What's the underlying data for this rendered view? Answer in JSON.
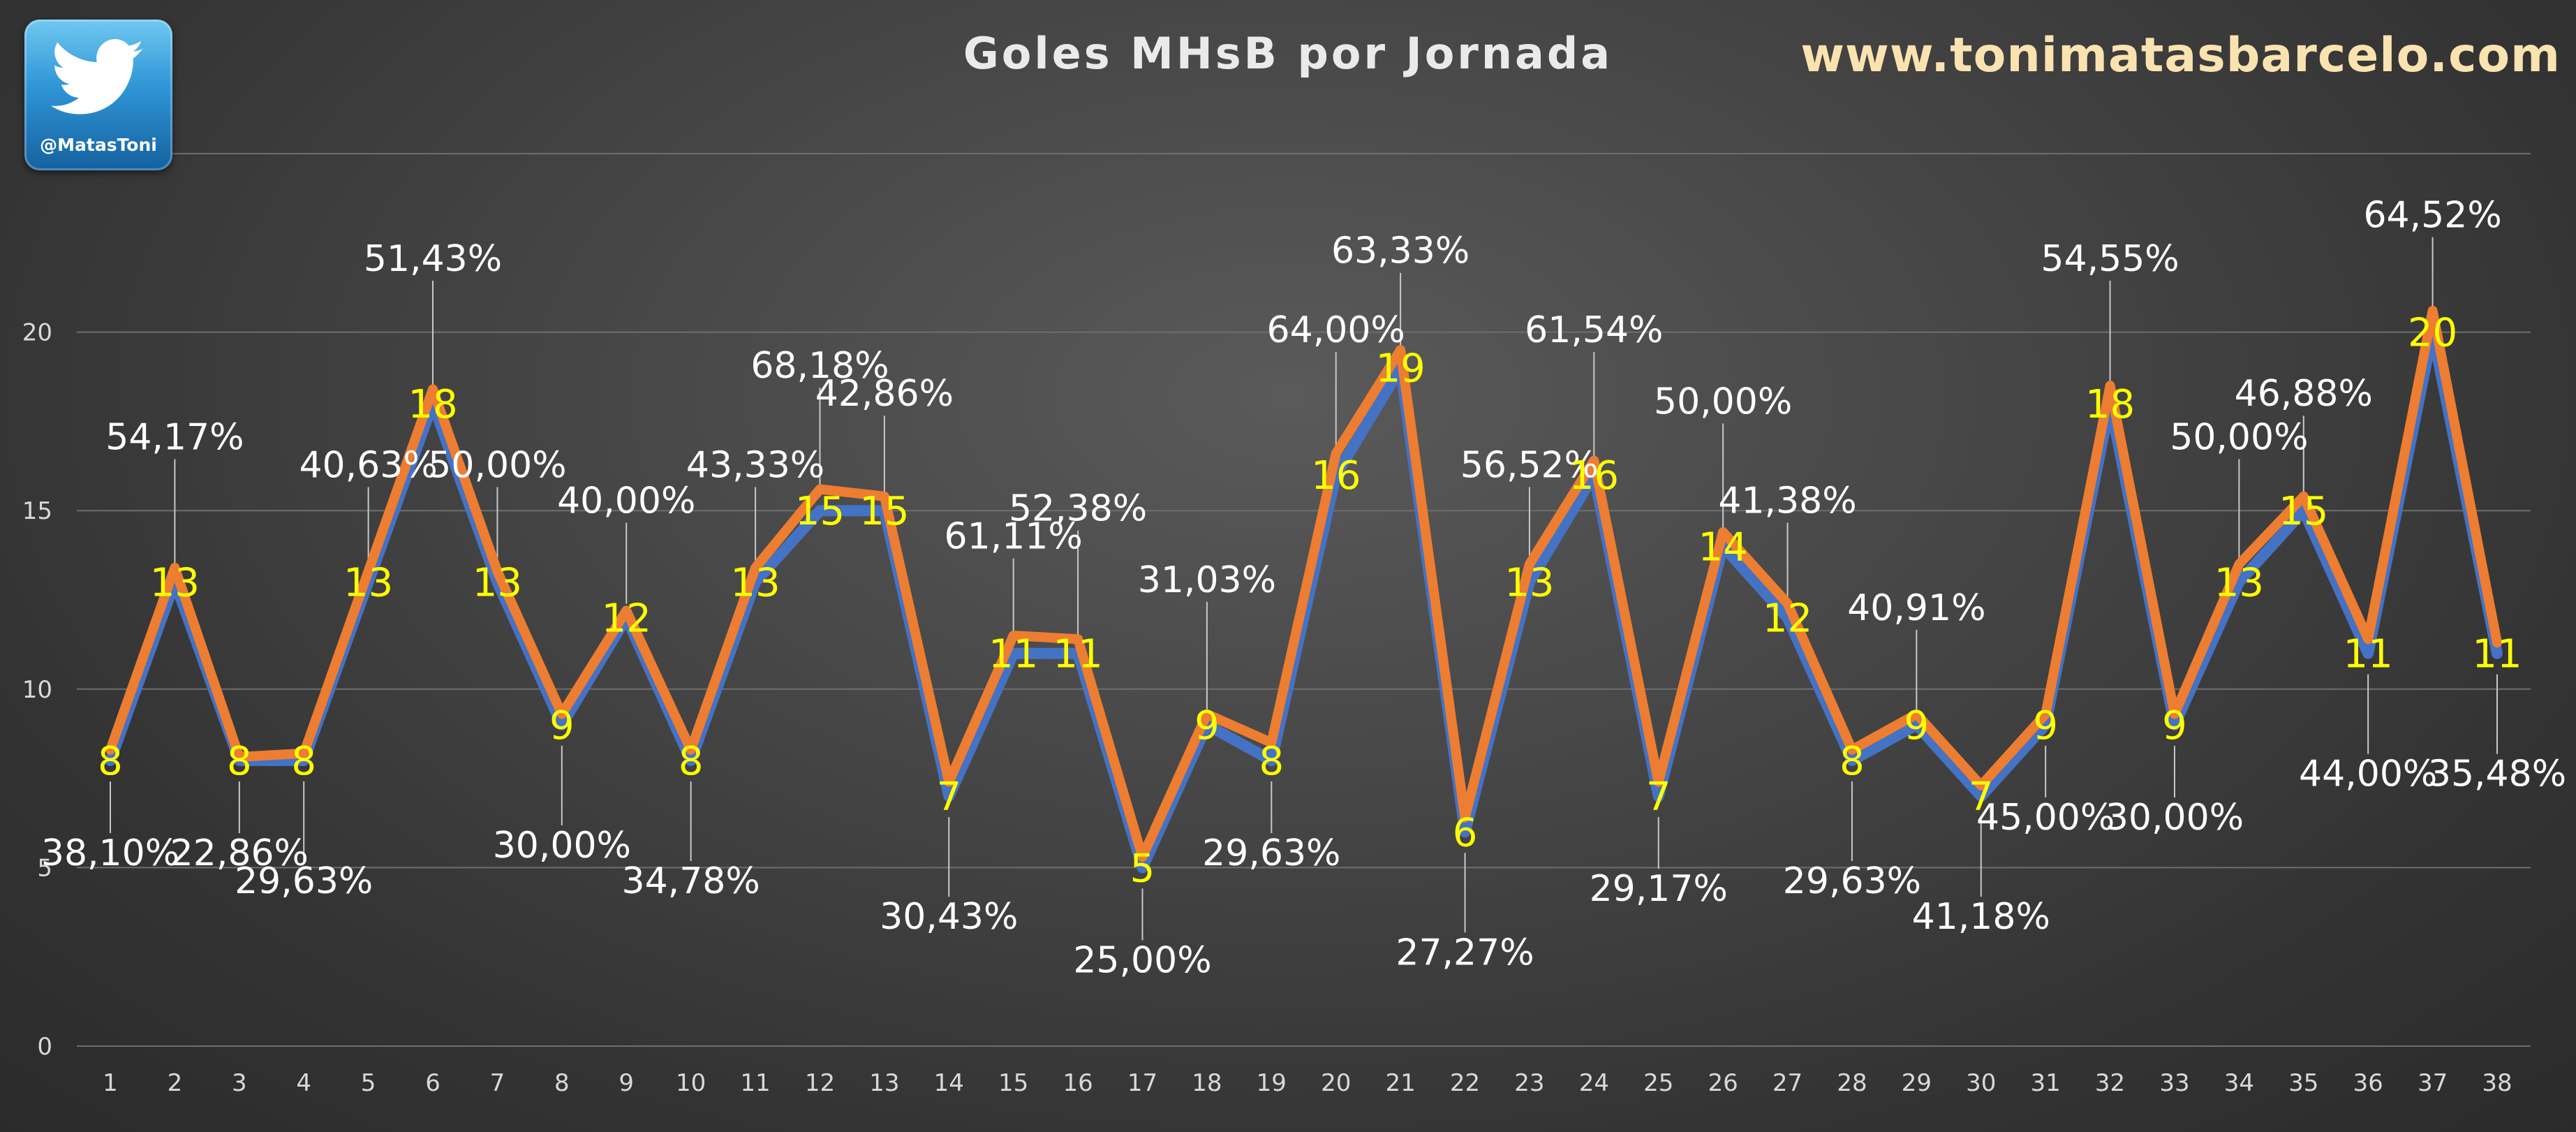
{
  "header": {
    "title": "Goles MHsB por Jornada",
    "website": "www.tonimatasbarcelo.com",
    "twitter_handle": "@MatasToni",
    "logo_icon": "twitter-bird-icon"
  },
  "chart_data": {
    "type": "line",
    "title": "Goles MHsB por Jornada",
    "xlabel": "",
    "ylabel": "",
    "ylim": [
      0,
      25
    ],
    "yticks": [
      0,
      5,
      10,
      15,
      20
    ],
    "grid": true,
    "categories": [
      "1",
      "2",
      "3",
      "4",
      "5",
      "6",
      "7",
      "8",
      "9",
      "10",
      "11",
      "12",
      "13",
      "14",
      "15",
      "16",
      "17",
      "18",
      "19",
      "20",
      "21",
      "22",
      "23",
      "24",
      "25",
      "26",
      "27",
      "28",
      "29",
      "30",
      "31",
      "32",
      "33",
      "34",
      "35",
      "36",
      "37",
      "38"
    ],
    "series": [
      {
        "color": "#4472c4",
        "values": [
          8,
          13,
          8,
          8,
          13,
          18,
          13,
          9,
          12,
          8,
          13,
          15,
          15,
          7,
          11,
          11,
          5,
          9,
          8,
          16,
          19,
          6,
          13,
          16,
          7,
          14,
          12,
          8,
          9,
          7,
          9,
          18,
          9,
          13,
          15,
          11,
          20,
          11
        ]
      },
      {
        "color": "#ed7d31",
        "values": [
          8.3,
          13.4,
          8.1,
          8.2,
          13.3,
          18.4,
          13.3,
          9.3,
          12.2,
          8.3,
          13.4,
          15.6,
          15.4,
          7.4,
          11.5,
          11.4,
          5.3,
          9.3,
          8.5,
          16.6,
          19.5,
          6.4,
          13.5,
          16.4,
          7.4,
          14.4,
          12.4,
          8.3,
          9.3,
          7.3,
          9.3,
          18.5,
          9.3,
          13.5,
          15.4,
          11.4,
          20.6,
          11.3
        ]
      }
    ],
    "data_labels": [
      "8",
      "13",
      "8",
      "8",
      "13",
      "18",
      "13",
      "9",
      "12",
      "8",
      "13",
      "15",
      "15",
      "7",
      "11",
      "11",
      "5",
      "9",
      "8",
      "16",
      "19",
      "6",
      "13",
      "16",
      "7",
      "14",
      "12",
      "8",
      "9",
      "7",
      "9",
      "18",
      "9",
      "13",
      "15",
      "11",
      "20",
      "11"
    ],
    "percent_labels": [
      "38,10%",
      "54,17%",
      "22,86%",
      "29,63%",
      "40,63%",
      "51,43%",
      "50,00%",
      "30,00%",
      "40,00%",
      "34,78%",
      "43,33%",
      "68,18%",
      "42,86%",
      "30,43%",
      "61,11%",
      "52,38%",
      "25,00%",
      "31,03%",
      "29,63%",
      "64,00%",
      "63,33%",
      "27,27%",
      "56,52%",
      "61,54%",
      "29,17%",
      "50,00%",
      "41,38%",
      "29,63%",
      "40,91%",
      "41,18%",
      "45,00%",
      "54,55%",
      "30,00%",
      "50,00%",
      "46,88%",
      "44,00%",
      "64,52%",
      "35,48%"
    ],
    "colors": {
      "data_label": "#ffff00",
      "percent_label": "#ffffff",
      "axis_text": "#d9d9d9",
      "gridline": "#6e6e6e",
      "leader": "#c8c8c8"
    }
  }
}
